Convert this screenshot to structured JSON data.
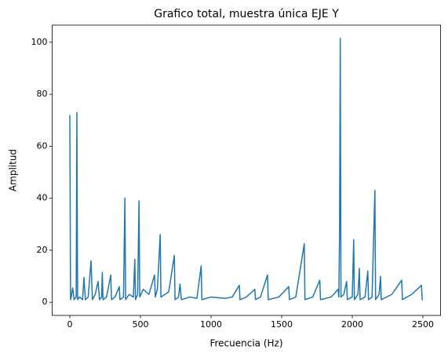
{
  "chart_data": {
    "type": "line",
    "title": "Grafico total, muestra única EJE Y",
    "xlabel": "Frecuencia (Hz)",
    "ylabel": "Amplitud",
    "color": "#1f77b4",
    "x": [
      0,
      5,
      10,
      20,
      30,
      45,
      50,
      55,
      70,
      90,
      100,
      110,
      130,
      150,
      160,
      180,
      200,
      210,
      225,
      230,
      235,
      260,
      290,
      295,
      320,
      350,
      355,
      380,
      390,
      395,
      420,
      450,
      460,
      465,
      480,
      490,
      495,
      520,
      560,
      600,
      605,
      620,
      640,
      645,
      700,
      740,
      745,
      770,
      780,
      790,
      850,
      900,
      930,
      935,
      1000,
      1100,
      1150,
      1200,
      1205,
      1250,
      1310,
      1315,
      1350,
      1400,
      1405,
      1480,
      1550,
      1555,
      1600,
      1660,
      1665,
      1720,
      1770,
      1775,
      1850,
      1900,
      1905,
      1910,
      1915,
      1920,
      1940,
      1960,
      1965,
      2000,
      2010,
      2015,
      2040,
      2050,
      2055,
      2090,
      2110,
      2115,
      2140,
      2160,
      2165,
      2190,
      2200,
      2205,
      2280,
      2350,
      2355,
      2420,
      2490,
      2495,
      2500
    ],
    "values": [
      72,
      1,
      2,
      5.5,
      1,
      2,
      73,
      1,
      2,
      1,
      9.5,
      1,
      2,
      16,
      1,
      3,
      8,
      1,
      2,
      11.5,
      1,
      2,
      10.5,
      1,
      2,
      6,
      1,
      2,
      40,
      1,
      3,
      2,
      16.5,
      1,
      3,
      39,
      2,
      5,
      3,
      10.5,
      2,
      5,
      26,
      2,
      4,
      18,
      1,
      2,
      7,
      1,
      2,
      1.5,
      14,
      1,
      2,
      1.5,
      2,
      6.5,
      1,
      2,
      5,
      1,
      2,
      10.5,
      1,
      2,
      6,
      1,
      2,
      22.5,
      1,
      2,
      8.5,
      1,
      2,
      5,
      2,
      27.5,
      101.5,
      2,
      3,
      8,
      1,
      2,
      24,
      1,
      3,
      13,
      1,
      2,
      12,
      1,
      2,
      43,
      1,
      3,
      10,
      1,
      3,
      8.5,
      1,
      3,
      6.5,
      1,
      1
    ],
    "xlim": [
      -125,
      2625
    ],
    "ylim": [
      -5.07,
      106.6
    ],
    "xticks": [
      0,
      500,
      1000,
      1500,
      2000,
      2500
    ],
    "yticks": [
      0,
      20,
      40,
      60,
      80,
      100
    ],
    "grid": false
  }
}
